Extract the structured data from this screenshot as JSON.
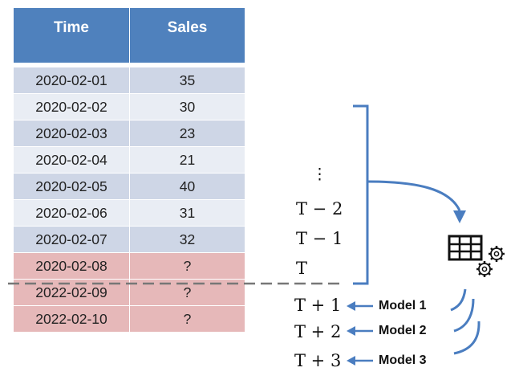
{
  "table": {
    "headers": {
      "time": "Time",
      "sales": "Sales"
    },
    "rows": [
      {
        "time": "2020-02-01",
        "sales": "35"
      },
      {
        "time": "2020-02-02",
        "sales": "30"
      },
      {
        "time": "2020-02-03",
        "sales": "23"
      },
      {
        "time": "2020-02-04",
        "sales": "21"
      },
      {
        "time": "2020-02-05",
        "sales": "40"
      },
      {
        "time": "2020-02-06",
        "sales": "31"
      },
      {
        "time": "2020-02-07",
        "sales": "32"
      }
    ],
    "forecast_rows": [
      {
        "time": "2020-02-08",
        "sales": "?"
      },
      {
        "time": "2022-02-09",
        "sales": "?"
      },
      {
        "time": "2022-02-10",
        "sales": "?"
      }
    ]
  },
  "labels": {
    "ellipsis": "⋮",
    "t_minus_2": "T − 2",
    "t_minus_1": "T − 1",
    "t": "T",
    "t_plus_1": "T + 1",
    "t_plus_2": "T + 2",
    "t_plus_3": "T + 3"
  },
  "models": [
    "Model 1",
    "Model 2",
    "Model 3"
  ],
  "icons": {
    "model": "table-with-gears-icon"
  },
  "colors": {
    "header": "#4f81bd",
    "row_dark": "#ced6e6",
    "row_light": "#e9edf4",
    "forecast": "#e6b8b9",
    "arrow": "#4a7dc0",
    "divider": "#777777"
  }
}
